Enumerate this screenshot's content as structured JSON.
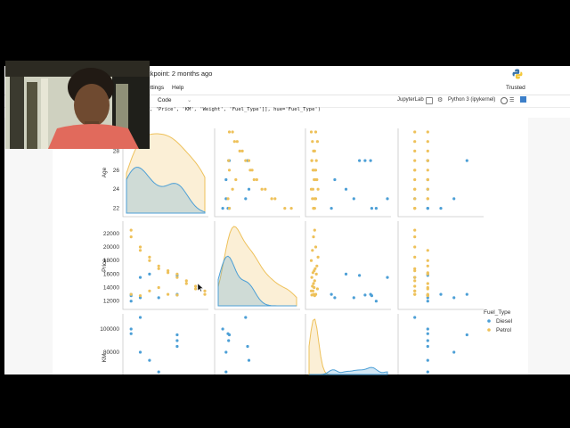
{
  "notebook": {
    "checkpoint": "ckpoint: 2 months ago",
    "trusted": "Trusted",
    "menu": {
      "settings": "ettings",
      "help": "Help"
    },
    "toolbar": {
      "cell_type": "Code",
      "jupyterlab": "JupyterLab",
      "kernel": "Python 3 (ipykernel)"
    },
    "code_line": {
      "p1": ", 'Price', 'KM', 'Weight', 'Fuel_Type']], hue='Fuel_Type')"
    }
  },
  "icons": {
    "python_logo": "python-logo-icon",
    "gear": "gear-icon",
    "kernel_status": "kernel-idle-circle-icon",
    "keyboard": "keyboard-icon",
    "cursor": "mouse-pointer-icon"
  },
  "colors": {
    "diesel": "#4c9fd6",
    "petrol": "#eec15a",
    "grid_border": "#c8c8c8"
  },
  "chart_data": {
    "type": "scatter",
    "title": "",
    "hue": "Fuel_Type",
    "variables_visible": [
      "Age",
      "Price",
      "KM"
    ],
    "legend": {
      "title": "Fuel_Type",
      "entries": [
        "Diesel",
        "Petrol"
      ],
      "placement": "right"
    },
    "axes": {
      "Age": {
        "label": "Age",
        "ticks": [
          "22",
          "24",
          "26",
          "28"
        ],
        "range": [
          21.5,
          30
        ]
      },
      "Price": {
        "label": "Price",
        "ticks": [
          "12000",
          "14000",
          "16000",
          "18000",
          "20000",
          "22000"
        ],
        "range": [
          11300,
          23300
        ]
      },
      "KM": {
        "label": "KM",
        "ticks": [
          "60000",
          "80000",
          "100000"
        ],
        "range": [
          40000,
          110000
        ]
      }
    },
    "series": [
      {
        "name": "Diesel",
        "Age": [
          22,
          22,
          23,
          27,
          27,
          27,
          24,
          25,
          22,
          23
        ],
        "Price": [
          12000,
          12800,
          15500,
          13000,
          15800,
          12900,
          16000,
          12500,
          13000,
          12500
        ],
        "KM": [
          100000,
          96000,
          110000,
          95000,
          85000,
          90000,
          73000,
          63000,
          60000,
          80000
        ],
        "Weight": [
          1170,
          1170,
          1165,
          1185,
          1170,
          1170,
          1170,
          1170,
          1175,
          1180
        ]
      },
      {
        "name": "Petrol",
        "Age": [
          22,
          22,
          23,
          23,
          24,
          24,
          25,
          25,
          26,
          26,
          27,
          27,
          28,
          28,
          29,
          29,
          30,
          30,
          22,
          23,
          24,
          25,
          26,
          27
        ],
        "Price": [
          22500,
          21500,
          20000,
          19500,
          18500,
          18000,
          17200,
          16800,
          16500,
          16200,
          16000,
          15500,
          15000,
          14600,
          14200,
          13800,
          13500,
          13000,
          13000,
          12800,
          13500,
          14000,
          13000,
          12900
        ],
        "KM": [
          45000,
          44000,
          46000,
          43000,
          48000,
          42000,
          47000,
          45500,
          44500,
          43500,
          46500,
          42500,
          45000,
          44000,
          43000,
          47500,
          42000,
          46000,
          44000,
          45000,
          43500,
          44500,
          46000,
          42500
        ],
        "Weight": [
          1165,
          1165,
          1165,
          1170,
          1165,
          1170,
          1170,
          1165,
          1165,
          1170,
          1170,
          1165,
          1165,
          1170,
          1165,
          1170,
          1165,
          1170,
          1165,
          1170,
          1165,
          1170,
          1165,
          1170
        ]
      }
    ]
  }
}
